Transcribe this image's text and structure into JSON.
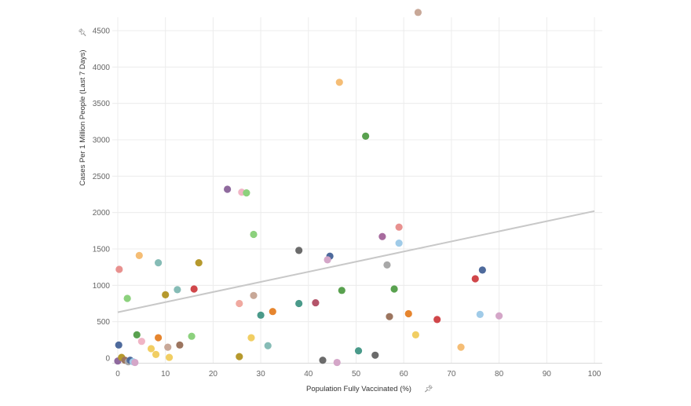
{
  "chart_data": {
    "type": "scatter",
    "xlabel": "Population Fully Vaccinated (%)",
    "ylabel": "Cases Per 1 Million People (Last 7 Days)",
    "pin_icon": "pin-icon",
    "xlim": [
      0,
      100
    ],
    "ylim": [
      0,
      4800
    ],
    "xticks": [
      0,
      10,
      20,
      30,
      40,
      50,
      60,
      70,
      80,
      90,
      100
    ],
    "yticks": [
      0,
      500,
      1000,
      1500,
      2000,
      2500,
      3000,
      3500,
      4000,
      4500
    ],
    "grid": true,
    "trendline": {
      "color": "#c8c8c8",
      "x": [
        0,
        100
      ],
      "y": [
        630,
        2020
      ]
    },
    "points": [
      {
        "x": 63.0,
        "y": 4750,
        "color": "#c8a898"
      },
      {
        "x": 46.5,
        "y": 3790,
        "color": "#f5bd75"
      },
      {
        "x": 52.0,
        "y": 3050,
        "color": "#59a14f"
      },
      {
        "x": 23.0,
        "y": 2320,
        "color": "#8f6a9e"
      },
      {
        "x": 26.0,
        "y": 2280,
        "color": "#f0b5c5"
      },
      {
        "x": 27.0,
        "y": 2270,
        "color": "#8cd17d"
      },
      {
        "x": 28.5,
        "y": 1700,
        "color": "#8cd17d"
      },
      {
        "x": 59.0,
        "y": 1800,
        "color": "#e8918f"
      },
      {
        "x": 55.5,
        "y": 1670,
        "color": "#a76b9e"
      },
      {
        "x": 59.0,
        "y": 1580,
        "color": "#a0cbe8"
      },
      {
        "x": 38.0,
        "y": 1480,
        "color": "#6b6b6b"
      },
      {
        "x": 44.5,
        "y": 1400,
        "color": "#4e6a9c"
      },
      {
        "x": 44.0,
        "y": 1350,
        "color": "#d4a6c8"
      },
      {
        "x": 56.5,
        "y": 1280,
        "color": "#a8a8a8"
      },
      {
        "x": 4.5,
        "y": 1410,
        "color": "#f5bd75"
      },
      {
        "x": 8.5,
        "y": 1310,
        "color": "#86bcb6"
      },
      {
        "x": 17.0,
        "y": 1310,
        "color": "#b6992d"
      },
      {
        "x": 0.3,
        "y": 1220,
        "color": "#e8918f"
      },
      {
        "x": 76.5,
        "y": 1210,
        "color": "#4e6a9c"
      },
      {
        "x": 75.0,
        "y": 1090,
        "color": "#d0464a"
      },
      {
        "x": 2.0,
        "y": 820,
        "color": "#8cd17d"
      },
      {
        "x": 10.0,
        "y": 870,
        "color": "#b6992d"
      },
      {
        "x": 12.5,
        "y": 940,
        "color": "#86bcb6"
      },
      {
        "x": 16.0,
        "y": 950,
        "color": "#d0464a"
      },
      {
        "x": 28.5,
        "y": 860,
        "color": "#c8a898"
      },
      {
        "x": 47.0,
        "y": 930,
        "color": "#59a14f"
      },
      {
        "x": 58.0,
        "y": 950,
        "color": "#59a14f"
      },
      {
        "x": 25.5,
        "y": 750,
        "color": "#f0a9a0"
      },
      {
        "x": 38.0,
        "y": 750,
        "color": "#4a9a8a"
      },
      {
        "x": 41.5,
        "y": 760,
        "color": "#b4546a"
      },
      {
        "x": 30.0,
        "y": 590,
        "color": "#4a9a8a"
      },
      {
        "x": 32.5,
        "y": 640,
        "color": "#e6852e"
      },
      {
        "x": 57.0,
        "y": 570,
        "color": "#9c755f"
      },
      {
        "x": 61.0,
        "y": 610,
        "color": "#e6852e"
      },
      {
        "x": 67.0,
        "y": 530,
        "color": "#d0464a"
      },
      {
        "x": 76.0,
        "y": 600,
        "color": "#a0cbe8"
      },
      {
        "x": 80.0,
        "y": 580,
        "color": "#d4a6c8"
      },
      {
        "x": 62.5,
        "y": 320,
        "color": "#f1ce63"
      },
      {
        "x": 72.0,
        "y": 150,
        "color": "#f5bd75"
      },
      {
        "x": 0.2,
        "y": 180,
        "color": "#4e6a9c"
      },
      {
        "x": 4.0,
        "y": 320,
        "color": "#59a14f"
      },
      {
        "x": 5.0,
        "y": 230,
        "color": "#f0b5c5"
      },
      {
        "x": 7.0,
        "y": 130,
        "color": "#f1ce63"
      },
      {
        "x": 8.5,
        "y": 280,
        "color": "#e6852e"
      },
      {
        "x": 10.5,
        "y": 150,
        "color": "#c8a898"
      },
      {
        "x": 13.0,
        "y": 180,
        "color": "#9c755f"
      },
      {
        "x": 15.5,
        "y": 300,
        "color": "#8cd17d"
      },
      {
        "x": 28.0,
        "y": 280,
        "color": "#f1ce63"
      },
      {
        "x": 31.5,
        "y": 170,
        "color": "#86bcb6"
      },
      {
        "x": 50.5,
        "y": 100,
        "color": "#4a9a8a"
      },
      {
        "x": 8.0,
        "y": 50,
        "color": "#f1ce63"
      },
      {
        "x": 10.8,
        "y": 10,
        "color": "#f1ce63"
      },
      {
        "x": 25.5,
        "y": 20,
        "color": "#b6992d"
      },
      {
        "x": 43.0,
        "y": -30,
        "color": "#6b6b6b"
      },
      {
        "x": 46.0,
        "y": -60,
        "color": "#d4a6c8"
      },
      {
        "x": 54.0,
        "y": 40,
        "color": "#6b6b6b"
      },
      {
        "x": 0.0,
        "y": -40,
        "color": "#8f6a9e"
      },
      {
        "x": 0.8,
        "y": 10,
        "color": "#b6992d"
      },
      {
        "x": 1.5,
        "y": -30,
        "color": "#9c755f"
      },
      {
        "x": 2.2,
        "y": -50,
        "color": "#a8a8a8"
      },
      {
        "x": 2.6,
        "y": -30,
        "color": "#4e6a9c"
      },
      {
        "x": 3.2,
        "y": -50,
        "color": "#a0cbe8"
      },
      {
        "x": 3.6,
        "y": -60,
        "color": "#d4a6c8"
      }
    ]
  }
}
